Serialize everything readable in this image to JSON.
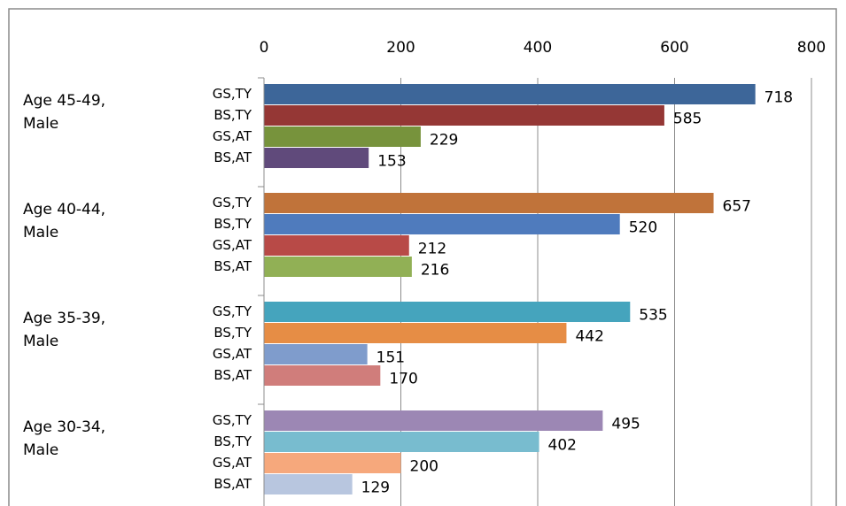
{
  "chart_data": {
    "type": "bar",
    "orientation": "horizontal",
    "xlim": [
      0,
      800
    ],
    "xticks": [
      0,
      200,
      400,
      600,
      800
    ],
    "grid": true,
    "groups": [
      {
        "label": [
          "Age 45-49,",
          "Male"
        ],
        "categories": [
          "GS,TY",
          "BS,TY",
          "GS,AT",
          "BS,AT"
        ],
        "values": [
          718,
          585,
          229,
          153
        ],
        "colors": [
          "#3d6699",
          "#953735",
          "#77933c",
          "#604a7b"
        ]
      },
      {
        "label": [
          "Age 40-44,",
          "Male"
        ],
        "categories": [
          "GS,TY",
          "BS,TY",
          "GS,AT",
          "BS,AT"
        ],
        "values": [
          657,
          520,
          212,
          216
        ],
        "colors": [
          "#c0733a",
          "#4f7bbd",
          "#b84a47",
          "#91b055"
        ]
      },
      {
        "label": [
          "Age 35-39,",
          "Male"
        ],
        "categories": [
          "GS,TY",
          "BS,TY",
          "GS,AT",
          "BS,AT"
        ],
        "values": [
          535,
          442,
          151,
          170
        ],
        "colors": [
          "#45a4bd",
          "#e68d45",
          "#7f9ccc",
          "#d07d7b"
        ]
      },
      {
        "label": [
          "Age 30-34,",
          "Male"
        ],
        "categories": [
          "GS,TY",
          "BS,TY",
          "GS,AT",
          "BS,AT"
        ],
        "values": [
          495,
          402,
          200,
          129
        ],
        "colors": [
          "#9c87b4",
          "#78bccf",
          "#f6a87c",
          "#b8c6df"
        ]
      }
    ]
  }
}
